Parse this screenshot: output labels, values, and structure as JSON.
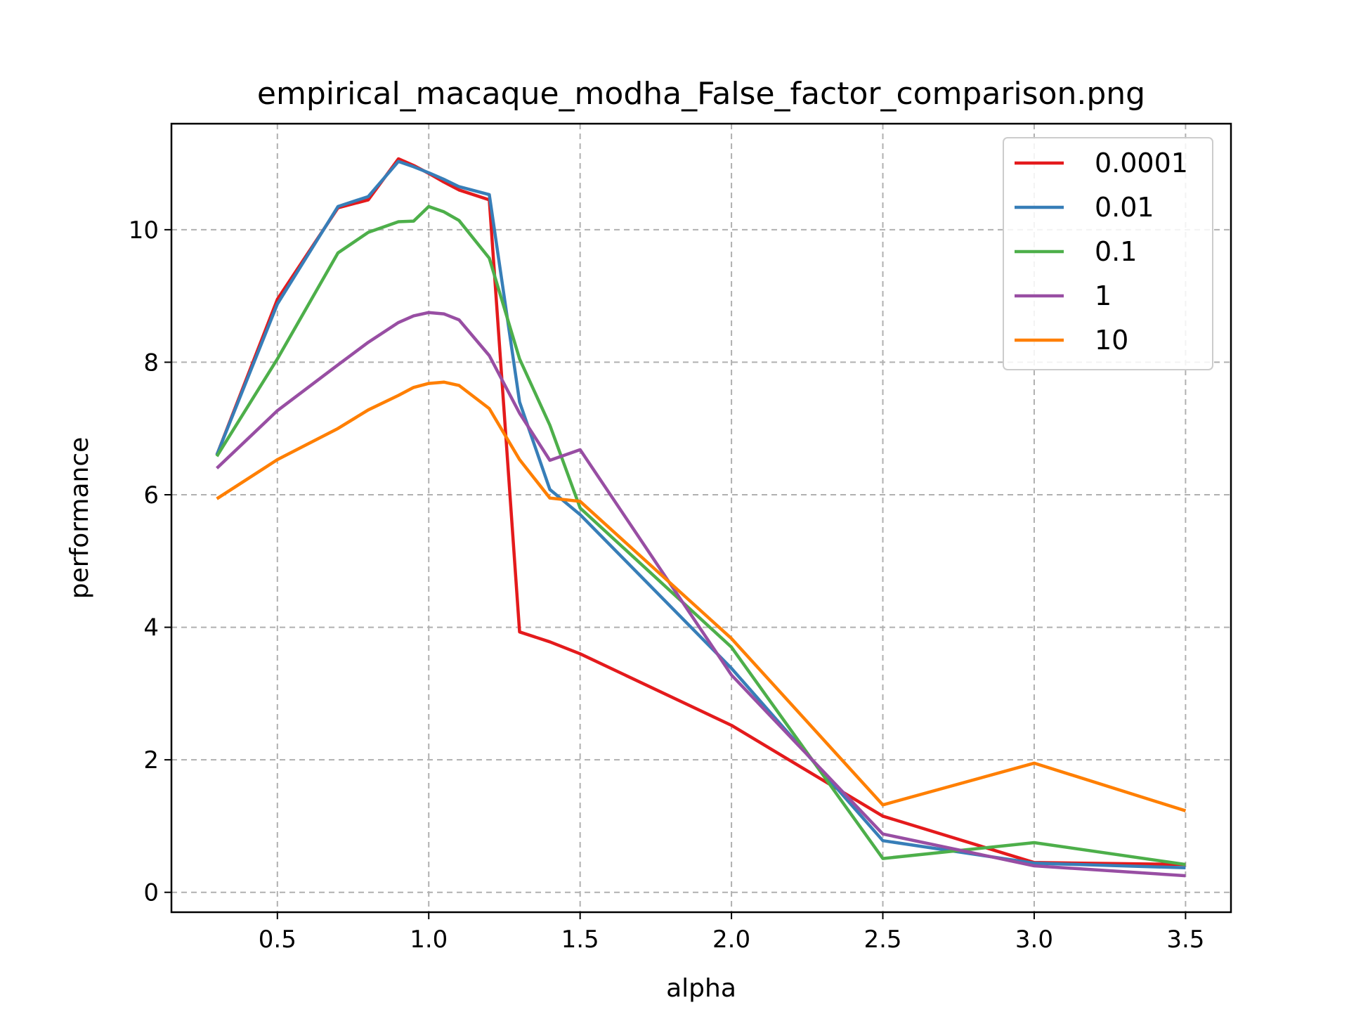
{
  "chart_data": {
    "type": "line",
    "title": "empirical_macaque_modha_False_factor_comparison.png",
    "xlabel": "alpha",
    "ylabel": "performance",
    "xlim": [
      0.15,
      3.65
    ],
    "ylim": [
      -0.3,
      11.6
    ],
    "xticks": [
      0.5,
      1.0,
      1.5,
      2.0,
      2.5,
      3.0,
      3.5
    ],
    "xtick_labels": [
      "0.5",
      "1.0",
      "1.5",
      "2.0",
      "2.5",
      "3.0",
      "3.5"
    ],
    "yticks": [
      0,
      2,
      4,
      6,
      8,
      10
    ],
    "ytick_labels": [
      "0",
      "2",
      "4",
      "6",
      "8",
      "10"
    ],
    "grid": true,
    "legend_position": "top-right",
    "x": [
      0.3,
      0.5,
      0.7,
      0.8,
      0.9,
      0.95,
      1.0,
      1.05,
      1.1,
      1.2,
      1.3,
      1.4,
      1.5,
      2.0,
      2.5,
      3.0,
      3.5
    ],
    "series": [
      {
        "name": "0.0001",
        "color": "#e41a1c",
        "values": [
          6.6,
          8.95,
          10.33,
          10.45,
          11.07,
          10.97,
          10.85,
          10.72,
          10.6,
          10.45,
          3.93,
          3.78,
          3.6,
          2.52,
          1.15,
          0.45,
          0.42
        ]
      },
      {
        "name": "0.01",
        "color": "#377eb8",
        "values": [
          6.6,
          8.88,
          10.35,
          10.5,
          11.03,
          10.95,
          10.86,
          10.76,
          10.65,
          10.53,
          7.4,
          6.08,
          5.7,
          3.38,
          0.78,
          0.44,
          0.37
        ]
      },
      {
        "name": "0.1",
        "color": "#4daf4a",
        "values": [
          6.58,
          8.05,
          9.65,
          9.96,
          10.12,
          10.13,
          10.35,
          10.27,
          10.14,
          9.57,
          8.05,
          7.05,
          5.8,
          3.7,
          0.51,
          0.75,
          0.42
        ]
      },
      {
        "name": "1",
        "color": "#984ea3",
        "values": [
          6.4,
          7.27,
          7.96,
          8.3,
          8.6,
          8.7,
          8.75,
          8.73,
          8.64,
          8.1,
          7.23,
          6.52,
          6.68,
          3.28,
          0.88,
          0.4,
          0.25
        ]
      },
      {
        "name": "10",
        "color": "#ff7f00",
        "values": [
          5.94,
          6.53,
          7.0,
          7.28,
          7.5,
          7.62,
          7.68,
          7.7,
          7.65,
          7.3,
          6.53,
          5.95,
          5.9,
          3.83,
          1.32,
          1.95,
          1.23
        ]
      }
    ]
  }
}
